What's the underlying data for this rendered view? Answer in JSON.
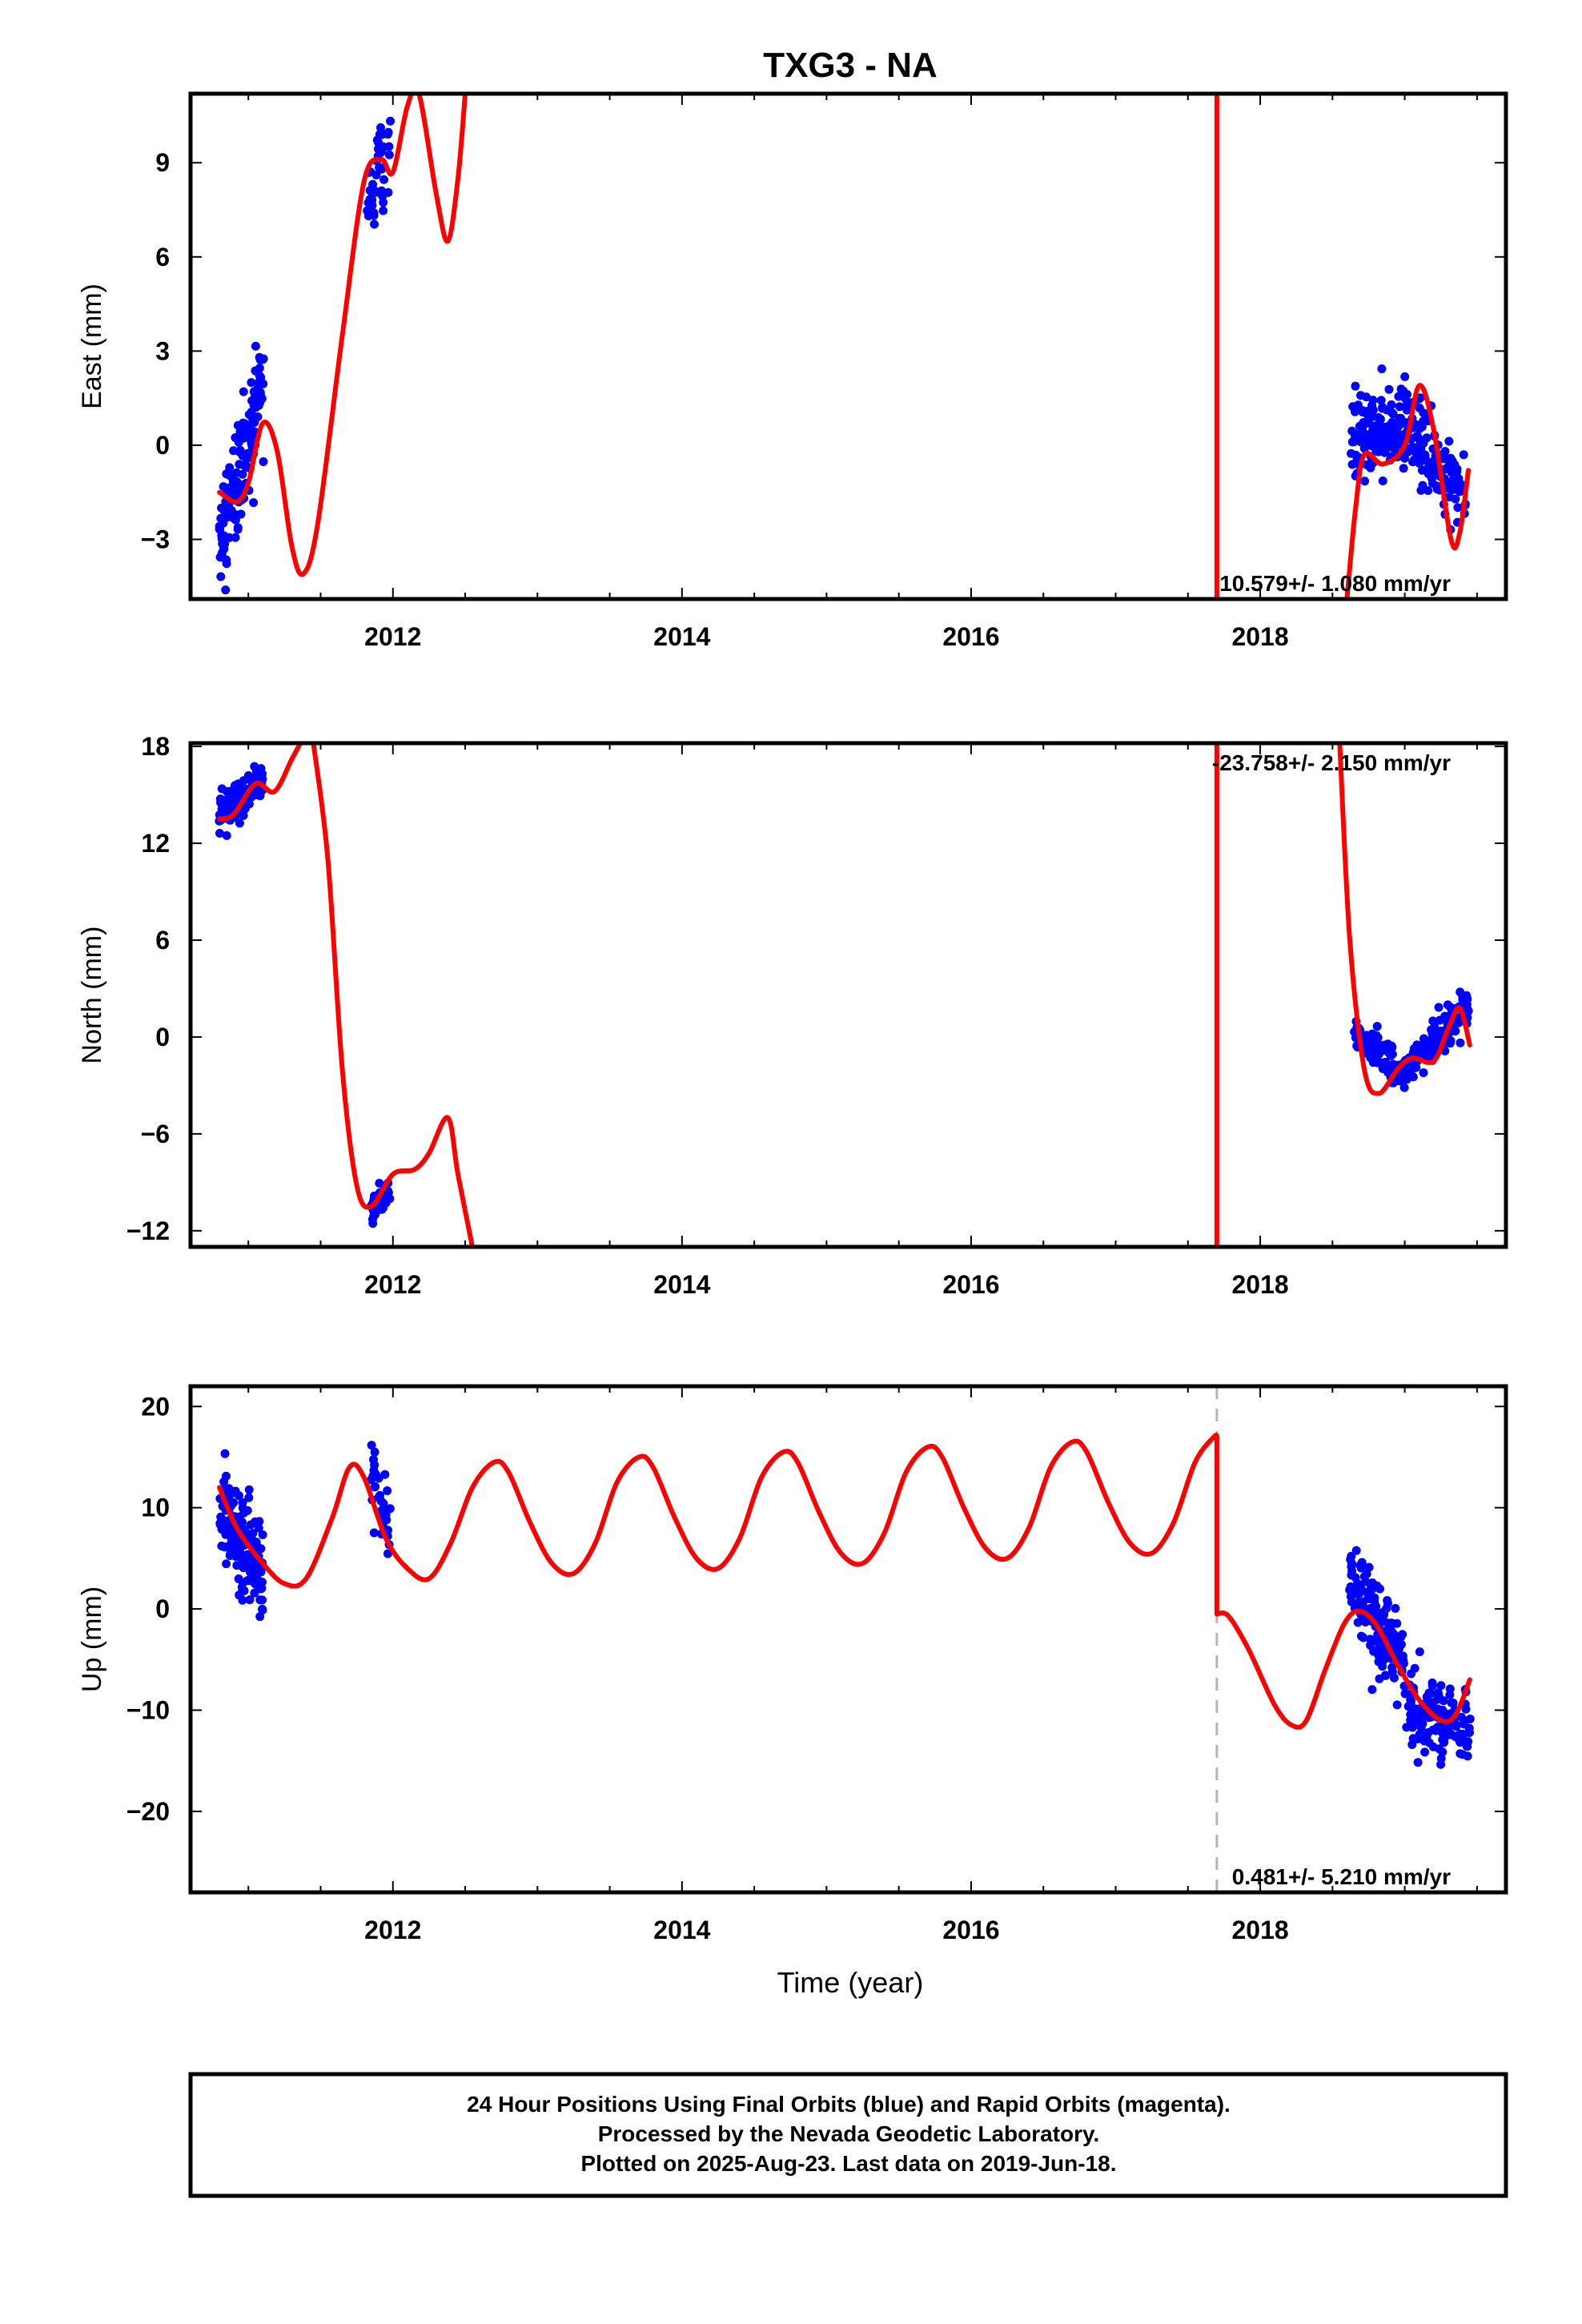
{
  "title": "TXG3 - NA",
  "xlabel": "Time (year)",
  "footer": [
    "24 Hour Positions Using Final Orbits (blue) and Rapid Orbits (magenta).",
    "Processed by the Nevada Geodetic Laboratory.",
    "Plotted on 2025-Aug-23. Last data on 2019-Jun-18."
  ],
  "colors": {
    "data": "#0000ff",
    "model": "#ff0000",
    "offset": "#b4b4b4",
    "axis": "#000000"
  },
  "chart_data": [
    {
      "type": "scatter",
      "ylabel": "East (mm)",
      "rate": "10.579+/- 1.080 mm/yr",
      "rate_position": "bottom-right",
      "xlim": [
        2010.6,
        2019.7
      ],
      "ylim": [
        -4.9,
        11.2
      ],
      "x_ticks": [
        2012,
        2014,
        2016,
        2018
      ],
      "y_ticks": [
        -3,
        0,
        3,
        6,
        9
      ],
      "offset_epoch": 2017.7,
      "data_clusters": [
        {
          "x_start": 2010.8,
          "x_end": 2011.1,
          "y_start": -3.0,
          "y_end": 2.0,
          "spread": 1.6,
          "count": 150
        },
        {
          "x_start": 2011.82,
          "x_end": 2011.98,
          "y_start": 7.5,
          "y_end": 9.8,
          "spread": 1.2,
          "count": 45
        },
        {
          "x_start": 2018.62,
          "x_end": 2019.0,
          "y_start": 0.0,
          "y_end": 0.8,
          "spread": 1.2,
          "count": 130
        },
        {
          "x_start": 2019.0,
          "x_end": 2019.42,
          "y_start": 0.8,
          "y_end": -2.0,
          "spread": 1.2,
          "count": 130
        }
      ],
      "model_segments": [
        [
          [
            2010.8,
            -1.5
          ],
          [
            2010.92,
            -1.8
          ],
          [
            2011.0,
            -1.2
          ],
          [
            2011.1,
            0.7
          ],
          [
            2011.2,
            -0.2
          ],
          [
            2011.3,
            -3.2
          ],
          [
            2011.38,
            -4.1
          ],
          [
            2011.48,
            -2.5
          ],
          [
            2011.65,
            3.5
          ],
          [
            2011.8,
            8.4
          ],
          [
            2011.92,
            9.1
          ],
          [
            2012.0,
            8.7
          ],
          [
            2012.1,
            10.8
          ],
          [
            2012.18,
            11.2
          ],
          [
            2012.3,
            8.0
          ],
          [
            2012.38,
            6.5
          ],
          [
            2012.45,
            8.5
          ],
          [
            2012.5,
            11.2
          ]
        ],
        [
          [
            2017.7,
            11.2
          ],
          [
            2017.7,
            -4.9
          ]
        ],
        [
          [
            2018.6,
            -4.9
          ],
          [
            2018.66,
            -2.0
          ],
          [
            2018.72,
            -0.3
          ],
          [
            2018.85,
            -0.6
          ],
          [
            2019.0,
            0.0
          ],
          [
            2019.1,
            1.9
          ],
          [
            2019.2,
            0.5
          ],
          [
            2019.32,
            -3.0
          ],
          [
            2019.38,
            -2.8
          ],
          [
            2019.44,
            -0.8
          ]
        ]
      ]
    },
    {
      "type": "scatter",
      "ylabel": "North (mm)",
      "rate": "-23.758+/- 2.150 mm/yr",
      "rate_position": "top-right",
      "xlim": [
        2010.6,
        2019.7
      ],
      "ylim": [
        -13.0,
        18.2
      ],
      "x_ticks": [
        2012,
        2014,
        2016,
        2018
      ],
      "y_ticks": [
        -12,
        -6,
        0,
        6,
        12,
        18
      ],
      "offset_epoch": 2017.7,
      "data_clusters": [
        {
          "x_start": 2010.8,
          "x_end": 2011.1,
          "y_start": 14.0,
          "y_end": 15.8,
          "spread": 1.1,
          "count": 140
        },
        {
          "x_start": 2011.85,
          "x_end": 2011.98,
          "y_start": -10.8,
          "y_end": -9.5,
          "spread": 0.9,
          "count": 40
        },
        {
          "x_start": 2018.65,
          "x_end": 2019.0,
          "y_start": 0.5,
          "y_end": -2.5,
          "spread": 1.0,
          "count": 130
        },
        {
          "x_start": 2019.0,
          "x_end": 2019.45,
          "y_start": -2.0,
          "y_end": 2.0,
          "spread": 1.0,
          "count": 130
        }
      ],
      "model_segments": [
        [
          [
            2010.8,
            13.5
          ],
          [
            2010.9,
            13.8
          ],
          [
            2011.05,
            15.7
          ],
          [
            2011.18,
            15.2
          ],
          [
            2011.3,
            17.2
          ],
          [
            2011.36,
            18.2
          ]
        ],
        [
          [
            2011.45,
            18.2
          ],
          [
            2011.55,
            11.0
          ],
          [
            2011.65,
            -2.0
          ],
          [
            2011.75,
            -9.2
          ],
          [
            2011.85,
            -10.5
          ],
          [
            2012.0,
            -8.5
          ],
          [
            2012.15,
            -8.2
          ],
          [
            2012.25,
            -7.2
          ],
          [
            2012.38,
            -5.0
          ],
          [
            2012.45,
            -8.5
          ],
          [
            2012.55,
            -13.0
          ]
        ],
        [
          [
            2017.7,
            18.2
          ],
          [
            2017.7,
            -13.0
          ]
        ],
        [
          [
            2018.55,
            18.2
          ],
          [
            2018.62,
            6.0
          ],
          [
            2018.72,
            -2.0
          ],
          [
            2018.82,
            -3.5
          ],
          [
            2018.95,
            -2.0
          ],
          [
            2019.05,
            -1.3
          ],
          [
            2019.2,
            -1.5
          ],
          [
            2019.3,
            0.5
          ],
          [
            2019.38,
            1.8
          ],
          [
            2019.45,
            -0.5
          ]
        ]
      ]
    },
    {
      "type": "scatter",
      "ylabel": "Up (mm)",
      "rate": "0.481+/- 5.210 mm/yr",
      "rate_position": "bottom-right",
      "xlim": [
        2010.6,
        2019.7
      ],
      "ylim": [
        -28.0,
        22.0
      ],
      "x_ticks": [
        2012,
        2014,
        2016,
        2018
      ],
      "y_ticks": [
        -20,
        -10,
        0,
        10,
        20
      ],
      "offset_epoch": 2017.7,
      "data_clusters": [
        {
          "x_start": 2010.8,
          "x_end": 2011.1,
          "y_start": 10.0,
          "y_end": 3.0,
          "spread": 4.5,
          "count": 170
        },
        {
          "x_start": 2011.85,
          "x_end": 2011.98,
          "y_start": 12.0,
          "y_end": 8.0,
          "spread": 4.0,
          "count": 35
        },
        {
          "x_start": 2018.62,
          "x_end": 2019.0,
          "y_start": 3.0,
          "y_end": -6.0,
          "spread": 4.0,
          "count": 140
        },
        {
          "x_start": 2019.0,
          "x_end": 2019.45,
          "y_start": -10.0,
          "y_end": -12.0,
          "spread": 3.5,
          "count": 140
        }
      ],
      "model_segments": [
        [
          [
            2010.8,
            12.0
          ],
          [
            2010.92,
            8.0
          ],
          [
            2011.1,
            4.5
          ],
          [
            2011.25,
            2.5
          ],
          [
            2011.4,
            3.0
          ],
          [
            2011.58,
            9.0
          ],
          [
            2011.7,
            14.0
          ],
          [
            2011.8,
            13.0
          ],
          [
            2011.95,
            7.0
          ],
          [
            2012.1,
            4.0
          ],
          [
            2012.25,
            3.0
          ],
          [
            2012.4,
            6.5
          ],
          [
            2012.55,
            12.0
          ],
          [
            2012.7,
            14.5
          ],
          [
            2012.8,
            13.5
          ],
          [
            2012.95,
            8.5
          ],
          [
            2013.1,
            4.5
          ],
          [
            2013.25,
            3.5
          ],
          [
            2013.4,
            6.5
          ],
          [
            2013.55,
            12.5
          ],
          [
            2013.7,
            15.0
          ],
          [
            2013.8,
            14.0
          ],
          [
            2013.95,
            9.0
          ],
          [
            2014.1,
            5.0
          ],
          [
            2014.25,
            4.0
          ],
          [
            2014.4,
            7.0
          ],
          [
            2014.55,
            13.0
          ],
          [
            2014.7,
            15.5
          ],
          [
            2014.8,
            14.5
          ],
          [
            2014.95,
            9.5
          ],
          [
            2015.1,
            5.5
          ],
          [
            2015.25,
            4.5
          ],
          [
            2015.4,
            7.5
          ],
          [
            2015.55,
            13.5
          ],
          [
            2015.7,
            16.0
          ],
          [
            2015.8,
            15.0
          ],
          [
            2015.95,
            10.0
          ],
          [
            2016.1,
            6.0
          ],
          [
            2016.25,
            5.0
          ],
          [
            2016.4,
            8.0
          ],
          [
            2016.55,
            14.0
          ],
          [
            2016.7,
            16.5
          ],
          [
            2016.8,
            15.5
          ],
          [
            2016.95,
            10.5
          ],
          [
            2017.1,
            6.5
          ],
          [
            2017.25,
            5.5
          ],
          [
            2017.4,
            8.5
          ],
          [
            2017.55,
            14.5
          ],
          [
            2017.68,
            17.0
          ],
          [
            2017.7,
            17.0
          ]
        ],
        [
          [
            2017.7,
            17.0
          ],
          [
            2017.7,
            -0.5
          ]
        ],
        [
          [
            2017.7,
            -0.5
          ],
          [
            2017.78,
            -0.7
          ],
          [
            2017.92,
            -4.0
          ],
          [
            2018.1,
            -9.5
          ],
          [
            2018.22,
            -11.5
          ],
          [
            2018.32,
            -11.0
          ],
          [
            2018.45,
            -6.0
          ],
          [
            2018.58,
            -1.5
          ],
          [
            2018.68,
            -0.2
          ],
          [
            2018.8,
            -1.5
          ],
          [
            2018.95,
            -5.5
          ],
          [
            2019.1,
            -9.0
          ],
          [
            2019.25,
            -11.0
          ],
          [
            2019.35,
            -10.5
          ],
          [
            2019.45,
            -7.0
          ]
        ]
      ]
    }
  ]
}
